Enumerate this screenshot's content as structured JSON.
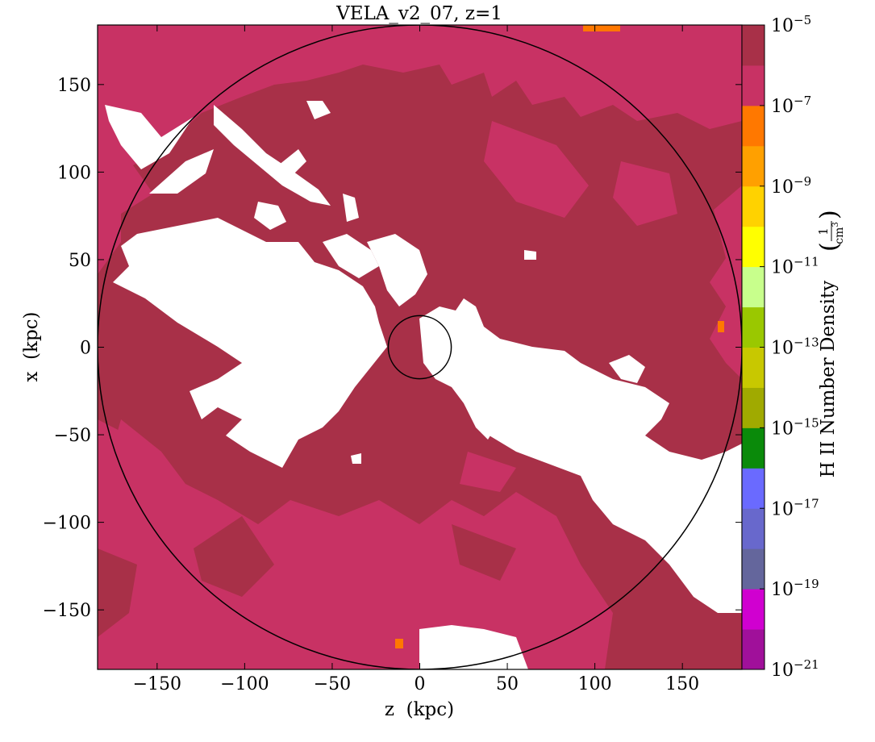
{
  "chart_data": {
    "type": "heatmap",
    "title": "VELA_v2_07, z=1",
    "xlabel": "z  (kpc)",
    "ylabel": "x  (kpc)",
    "xlim": [
      -184,
      184
    ],
    "ylim": [
      -184,
      184
    ],
    "xticks": [
      -150,
      -100,
      -50,
      0,
      50,
      100,
      150
    ],
    "yticks": [
      150,
      100,
      50,
      0,
      -50,
      -100,
      -150
    ],
    "xtick_labels": [
      "−150",
      "−100",
      "−50",
      "0",
      "50",
      "100",
      "150"
    ],
    "ytick_labels": [
      "150",
      "100",
      "50",
      "0",
      "−50",
      "−100",
      "−150"
    ],
    "colorbar": {
      "label": "H II Number Density",
      "unit_numerator": "1",
      "unit_denominator": "cm",
      "unit_exponent": "3",
      "scale": "log",
      "range_exponents": [
        -21,
        -5
      ],
      "tick_base": "10",
      "tick_exponents": [
        "-5",
        "-7",
        "-9",
        "-11",
        "-13",
        "-15",
        "-17",
        "-19",
        "-21"
      ],
      "bins": [
        {
          "from": -21,
          "to": -20,
          "color": "#a0109a"
        },
        {
          "from": -20,
          "to": -19,
          "color": "#d000d0"
        },
        {
          "from": -19,
          "to": -18,
          "color": "#64669c"
        },
        {
          "from": -18,
          "to": -17,
          "color": "#6868cc"
        },
        {
          "from": -17,
          "to": -16,
          "color": "#6a6aff"
        },
        {
          "from": -16,
          "to": -15,
          "color": "#0a8a0a"
        },
        {
          "from": -15,
          "to": -14,
          "color": "#a0aa00"
        },
        {
          "from": -14,
          "to": -13,
          "color": "#c8c800"
        },
        {
          "from": -13,
          "to": -12,
          "color": "#9ac800"
        },
        {
          "from": -12,
          "to": -11,
          "color": "#c8ff8c"
        },
        {
          "from": -11,
          "to": -10,
          "color": "#ffff00"
        },
        {
          "from": -10,
          "to": -9,
          "color": "#ffd200"
        },
        {
          "from": -9,
          "to": -8,
          "color": "#ffa000"
        },
        {
          "from": -8,
          "to": -7,
          "color": "#ff7800"
        },
        {
          "from": -7,
          "to": -6,
          "color": "#c83264"
        },
        {
          "from": -6,
          "to": -5,
          "color": "#a83048"
        }
      ]
    },
    "field_colors": {
      "outer_gas": "#c83264",
      "dense_gas": "#a83048",
      "empty": "#ffffff",
      "hot_spot": "#ff7800"
    },
    "circles": [
      {
        "name": "virial-radius-circle",
        "center": [
          0,
          0
        ],
        "radius": 184
      },
      {
        "name": "inner-galaxy-circle",
        "center": [
          0,
          0
        ],
        "radius": 18
      }
    ]
  }
}
